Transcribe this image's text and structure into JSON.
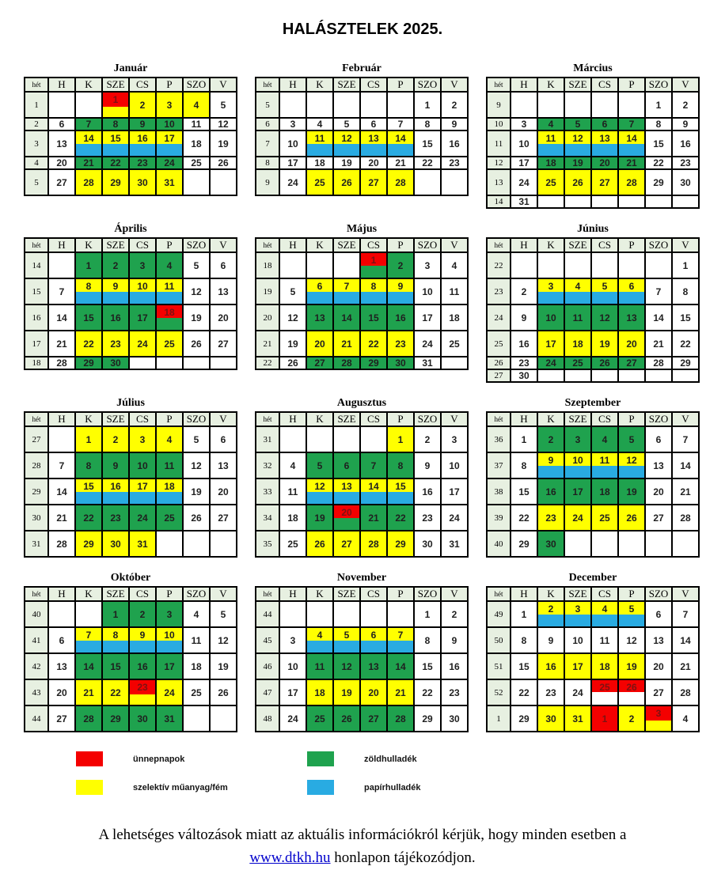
{
  "title": "HALÁSZTELEK 2025.",
  "colors": {
    "holiday_red": "#f40000",
    "selective_yellow": "#ffff00",
    "green_waste": "#1fa24e",
    "paper_blue": "#29abe2",
    "header_bg": "#e7f0e1",
    "border": "#000000"
  },
  "day_headers": [
    "hét",
    "H",
    "K",
    "SZE",
    "CS",
    "P",
    "SZO",
    "V"
  ],
  "legend": [
    {
      "key": "red",
      "label": "ünnepnapok"
    },
    {
      "key": "green",
      "label": "zöldhulladék"
    },
    {
      "key": "yellow",
      "label": "szelektív műanyag/fém"
    },
    {
      "key": "blue",
      "label": "papírhulladék"
    }
  ],
  "footer": {
    "line1": "A lehetséges változások miatt az aktuális információkról kérjük, hogy minden esetben a",
    "link": "www.dtkh.hu",
    "line2_rest": " honlapon tájékozódjon."
  },
  "cell_code_meaning": {
    "w": "white/no collection",
    "y": "szelektív műanyag/fém",
    "g": "zöldhulladék",
    "yb": "szelektív + papírhulladék",
    "r": "ünnepnap",
    "ry": "ünnepnap + szelektív",
    "rg": "ünnepnap + zöldhulladék",
    "rw": "ünnepnap",
    "null": "no cell"
  },
  "months": [
    {
      "name": "Január",
      "rows": [
        {
          "week": "1",
          "h": "t",
          "cells": [
            ":w",
            ":w",
            "1:ry",
            "2:y",
            "3:y",
            "4:y",
            "5:w"
          ]
        },
        {
          "week": "2",
          "h": "s",
          "cells": [
            "6:w",
            "7:g",
            "8:g",
            "9:g",
            "10:g",
            "11:w",
            "12:w"
          ]
        },
        {
          "week": "3",
          "h": "t",
          "cells": [
            "13:w",
            "14:yb",
            "15:yb",
            "16:yb",
            "17:yb",
            "18:w",
            "19:w"
          ]
        },
        {
          "week": "4",
          "h": "s",
          "cells": [
            "20:w",
            "21:g",
            "22:g",
            "23:g",
            "24:g",
            "25:w",
            "26:w"
          ]
        },
        {
          "week": "5",
          "h": "t",
          "cells": [
            "27:w",
            "28:y",
            "29:y",
            "30:y",
            "31:y",
            null,
            null
          ]
        }
      ]
    },
    {
      "name": "Február",
      "rows": [
        {
          "week": "5",
          "h": "t",
          "cells": [
            ":w",
            ":w",
            ":w",
            ":w",
            ":w",
            "1:w",
            "2:w"
          ]
        },
        {
          "week": "6",
          "h": "s",
          "cells": [
            "3:w",
            "4:w",
            "5:w",
            "6:w",
            "7:w",
            "8:w",
            "9:w"
          ]
        },
        {
          "week": "7",
          "h": "t",
          "cells": [
            "10:w",
            "11:yb",
            "12:yb",
            "13:yb",
            "14:yb",
            "15:w",
            "16:w"
          ]
        },
        {
          "week": "8",
          "h": "s",
          "cells": [
            "17:w",
            "18:w",
            "19:w",
            "20:w",
            "21:w",
            "22:w",
            "23:w"
          ]
        },
        {
          "week": "9",
          "h": "t",
          "cells": [
            "24:w",
            "25:y",
            "26:y",
            "27:y",
            "28:y",
            null,
            null
          ]
        }
      ]
    },
    {
      "name": "Március",
      "rows": [
        {
          "week": "9",
          "h": "t",
          "cells": [
            ":w",
            ":w",
            ":w",
            ":w",
            ":w",
            "1:w",
            "2:w"
          ]
        },
        {
          "week": "10",
          "h": "s",
          "cells": [
            "3:w",
            "4:g",
            "5:g",
            "6:g",
            "7:g",
            "8:w",
            "9:w"
          ]
        },
        {
          "week": "11",
          "h": "t",
          "cells": [
            "10:w",
            "11:yb",
            "12:yb",
            "13:yb",
            "14:yb",
            "15:w",
            "16:w"
          ]
        },
        {
          "week": "12",
          "h": "s",
          "cells": [
            "17:w",
            "18:g",
            "19:g",
            "20:g",
            "21:g",
            "22:w",
            "23:w"
          ]
        },
        {
          "week": "13",
          "h": "t",
          "cells": [
            "24:w",
            "25:y",
            "26:y",
            "27:y",
            "28:y",
            "29:w",
            "30:w"
          ]
        },
        {
          "week": "14",
          "h": "s",
          "cells": [
            "31:w",
            null,
            null,
            null,
            null,
            null,
            null
          ]
        }
      ]
    },
    {
      "name": "Április",
      "rows": [
        {
          "week": "14",
          "h": "t",
          "cells": [
            ":w",
            "1:g",
            "2:g",
            "3:g",
            "4:g",
            "5:w",
            "6:w"
          ]
        },
        {
          "week": "15",
          "h": "t",
          "cells": [
            "7:w",
            "8:yb",
            "9:yb",
            "10:yb",
            "11:yb",
            "12:w",
            "13:w"
          ]
        },
        {
          "week": "16",
          "h": "t",
          "cells": [
            "14:w",
            "15:g",
            "16:g",
            "17:g",
            "18:rg",
            "19:w",
            "20:w"
          ]
        },
        {
          "week": "17",
          "h": "t",
          "cells": [
            "21:w",
            "22:y",
            "23:y",
            "24:y",
            "25:y",
            "26:w",
            "27:w"
          ]
        },
        {
          "week": "18",
          "h": "s",
          "cells": [
            "28:w",
            "29:g",
            "30:g",
            null,
            null,
            null,
            null
          ]
        }
      ]
    },
    {
      "name": "Május",
      "rows": [
        {
          "week": "18",
          "h": "t",
          "cells": [
            ":w",
            ":w",
            ":w",
            "1:rg",
            "2:g",
            "3:w",
            "4:w"
          ]
        },
        {
          "week": "19",
          "h": "t",
          "cells": [
            "5:w",
            "6:yb",
            "7:yb",
            "8:yb",
            "9:yb",
            "10:w",
            "11:w"
          ]
        },
        {
          "week": "20",
          "h": "t",
          "cells": [
            "12:w",
            "13:g",
            "14:g",
            "15:g",
            "16:g",
            "17:w",
            "18:w"
          ]
        },
        {
          "week": "21",
          "h": "t",
          "cells": [
            "19:w",
            "20:y",
            "21:y",
            "22:y",
            "23:y",
            "24:w",
            "25:w"
          ]
        },
        {
          "week": "22",
          "h": "s",
          "cells": [
            "26:w",
            "27:g",
            "28:g",
            "29:g",
            "30:g",
            "31:w",
            null
          ]
        }
      ]
    },
    {
      "name": "Június",
      "rows": [
        {
          "week": "22",
          "h": "t",
          "cells": [
            ":w",
            ":w",
            ":w",
            ":w",
            ":w",
            ":w",
            "1:w"
          ]
        },
        {
          "week": "23",
          "h": "t",
          "cells": [
            "2:w",
            "3:yb",
            "4:yb",
            "5:yb",
            "6:yb",
            "7:w",
            "8:w"
          ]
        },
        {
          "week": "24",
          "h": "t",
          "cells": [
            "9:w",
            "10:g",
            "11:g",
            "12:g",
            "13:g",
            "14:w",
            "15:w"
          ]
        },
        {
          "week": "25",
          "h": "t",
          "cells": [
            "16:w",
            "17:y",
            "18:y",
            "19:y",
            "20:y",
            "21:w",
            "22:w"
          ]
        },
        {
          "week": "26",
          "h": "s",
          "cells": [
            "23:w",
            "24:g",
            "25:g",
            "26:g",
            "27:g",
            "28:w",
            "29:w"
          ]
        },
        {
          "week": "27",
          "h": "s",
          "cells": [
            "30:w",
            null,
            null,
            null,
            null,
            null,
            null
          ]
        }
      ]
    },
    {
      "name": "Július",
      "rows": [
        {
          "week": "27",
          "h": "t",
          "cells": [
            ":w",
            "1:y",
            "2:y",
            "3:y",
            "4:y",
            "5:w",
            "6:w"
          ]
        },
        {
          "week": "28",
          "h": "t",
          "cells": [
            "7:w",
            "8:g",
            "9:g",
            "10:g",
            "11:g",
            "12:w",
            "13:w"
          ]
        },
        {
          "week": "29",
          "h": "t",
          "cells": [
            "14:w",
            "15:yb",
            "16:yb",
            "17:yb",
            "18:yb",
            "19:w",
            "20:w"
          ]
        },
        {
          "week": "30",
          "h": "t",
          "cells": [
            "21:w",
            "22:g",
            "23:g",
            "24:g",
            "25:g",
            "26:w",
            "27:w"
          ]
        },
        {
          "week": "31",
          "h": "t",
          "cells": [
            "28:w",
            "29:y",
            "30:y",
            "31:y",
            null,
            null,
            null
          ]
        }
      ]
    },
    {
      "name": "Augusztus",
      "rows": [
        {
          "week": "31",
          "h": "t",
          "cells": [
            ":w",
            ":w",
            ":w",
            ":w",
            "1:y",
            "2:w",
            "3:w"
          ]
        },
        {
          "week": "32",
          "h": "t",
          "cells": [
            "4:w",
            "5:g",
            "6:g",
            "7:g",
            "8:g",
            "9:w",
            "10:w"
          ]
        },
        {
          "week": "33",
          "h": "t",
          "cells": [
            "11:w",
            "12:yb",
            "13:yb",
            "14:yb",
            "15:yb",
            "16:w",
            "17:w"
          ]
        },
        {
          "week": "34",
          "h": "t",
          "cells": [
            "18:w",
            "19:g",
            "20:rg",
            "21:g",
            "22:g",
            "23:w",
            "24:w"
          ]
        },
        {
          "week": "35",
          "h": "t",
          "cells": [
            "25:w",
            "26:y",
            "27:y",
            "28:y",
            "29:y",
            "30:w",
            "31:w"
          ]
        }
      ]
    },
    {
      "name": "Szeptember",
      "rows": [
        {
          "week": "36",
          "h": "t",
          "cells": [
            "1:w",
            "2:g",
            "3:g",
            "4:g",
            "5:g",
            "6:w",
            "7:w"
          ]
        },
        {
          "week": "37",
          "h": "t",
          "cells": [
            "8:w",
            "9:yb",
            "10:yb",
            "11:yb",
            "12:yb",
            "13:w",
            "14:w"
          ]
        },
        {
          "week": "38",
          "h": "t",
          "cells": [
            "15:w",
            "16:g",
            "17:g",
            "18:g",
            "19:g",
            "20:w",
            "21:w"
          ]
        },
        {
          "week": "39",
          "h": "t",
          "cells": [
            "22:w",
            "23:y",
            "24:y",
            "25:y",
            "26:y",
            "27:w",
            "28:w"
          ]
        },
        {
          "week": "40",
          "h": "t",
          "cells": [
            "29:w",
            "30:g",
            null,
            null,
            null,
            null,
            null
          ]
        }
      ]
    },
    {
      "name": "Október",
      "rows": [
        {
          "week": "40",
          "h": "t",
          "cells": [
            ":w",
            ":w",
            "1:g",
            "2:g",
            "3:g",
            "4:w",
            "5:w"
          ]
        },
        {
          "week": "41",
          "h": "t",
          "cells": [
            "6:w",
            "7:yb",
            "8:yb",
            "9:yb",
            "10:yb",
            "11:w",
            "12:w"
          ]
        },
        {
          "week": "42",
          "h": "t",
          "cells": [
            "13:w",
            "14:g",
            "15:g",
            "16:g",
            "17:g",
            "18:w",
            "19:w"
          ]
        },
        {
          "week": "43",
          "h": "t",
          "cells": [
            "20:w",
            "21:y",
            "22:y",
            "23:ry",
            "24:y",
            "25:w",
            "26:w"
          ]
        },
        {
          "week": "44",
          "h": "t",
          "cells": [
            "27:w",
            "28:g",
            "29:g",
            "30:g",
            "31:g",
            null,
            null
          ]
        }
      ]
    },
    {
      "name": "November",
      "rows": [
        {
          "week": "44",
          "h": "t",
          "cells": [
            ":w",
            ":w",
            ":w",
            ":w",
            ":w",
            "1:w",
            "2:w"
          ]
        },
        {
          "week": "45",
          "h": "t",
          "cells": [
            "3:w",
            "4:yb",
            "5:yb",
            "6:yb",
            "7:yb",
            "8:w",
            "9:w"
          ]
        },
        {
          "week": "46",
          "h": "t",
          "cells": [
            "10:w",
            "11:g",
            "12:g",
            "13:g",
            "14:g",
            "15:w",
            "16:w"
          ]
        },
        {
          "week": "47",
          "h": "t",
          "cells": [
            "17:w",
            "18:y",
            "19:y",
            "20:y",
            "21:y",
            "22:w",
            "23:w"
          ]
        },
        {
          "week": "48",
          "h": "t",
          "cells": [
            "24:w",
            "25:g",
            "26:g",
            "27:g",
            "28:g",
            "29:w",
            "30:w"
          ]
        }
      ]
    },
    {
      "name": "December",
      "rows": [
        {
          "week": "49",
          "h": "t",
          "cells": [
            "1:w",
            "2:yb",
            "3:yb",
            "4:yb",
            "5:yb",
            "6:w",
            "7:w"
          ]
        },
        {
          "week": "50",
          "h": "t",
          "cells": [
            "8:w",
            "9:w",
            "10:w",
            "11:w",
            "12:w",
            "13:w",
            "14:w"
          ]
        },
        {
          "week": "51",
          "h": "t",
          "cells": [
            "15:w",
            "16:y",
            "17:y",
            "18:y",
            "19:y",
            "20:w",
            "21:w"
          ]
        },
        {
          "week": "52",
          "h": "t",
          "cells": [
            "22:w",
            "23:w",
            "24:w",
            "25:rw",
            "26:rw",
            "27:w",
            "28:w"
          ]
        },
        {
          "week": "1",
          "h": "t",
          "cells": [
            "29:w",
            "30:y",
            "31:y",
            "1:r",
            "2:y",
            "3:ry",
            "4:w"
          ]
        }
      ]
    }
  ]
}
